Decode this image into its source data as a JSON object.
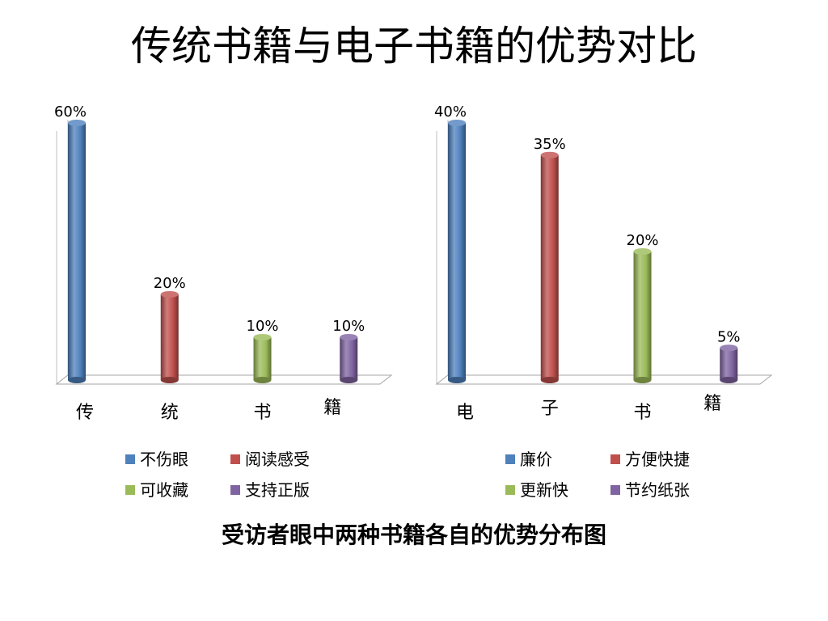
{
  "title": "传统书籍与电子书籍的优势对比",
  "caption": "受访者眼中两种书籍各自的优势分布图",
  "chart_data": [
    {
      "type": "bar",
      "categories": [
        "传",
        "统",
        "书",
        "籍"
      ],
      "values": [
        60,
        20,
        10,
        10
      ],
      "value_labels": [
        "60%",
        "20%",
        "10%",
        "10%"
      ],
      "ylim": [
        0,
        60
      ],
      "legend": [
        "不伤眼",
        "阅读感受",
        "可收藏",
        "支持正版"
      ],
      "colors": [
        "#4F81BD",
        "#C0504D",
        "#9BBB59",
        "#8064A2"
      ],
      "legend_placement": "bottom"
    },
    {
      "type": "bar",
      "categories": [
        "电",
        "子",
        "书",
        "籍"
      ],
      "values": [
        40,
        35,
        20,
        5
      ],
      "value_labels": [
        "40%",
        "35%",
        "20%",
        "5%"
      ],
      "ylim": [
        0,
        40
      ],
      "legend": [
        "廉价",
        "方便快捷",
        "更新快",
        "节约纸张"
      ],
      "colors": [
        "#4F81BD",
        "#C0504D",
        "#9BBB59",
        "#8064A2"
      ],
      "legend_placement": "bottom"
    }
  ]
}
